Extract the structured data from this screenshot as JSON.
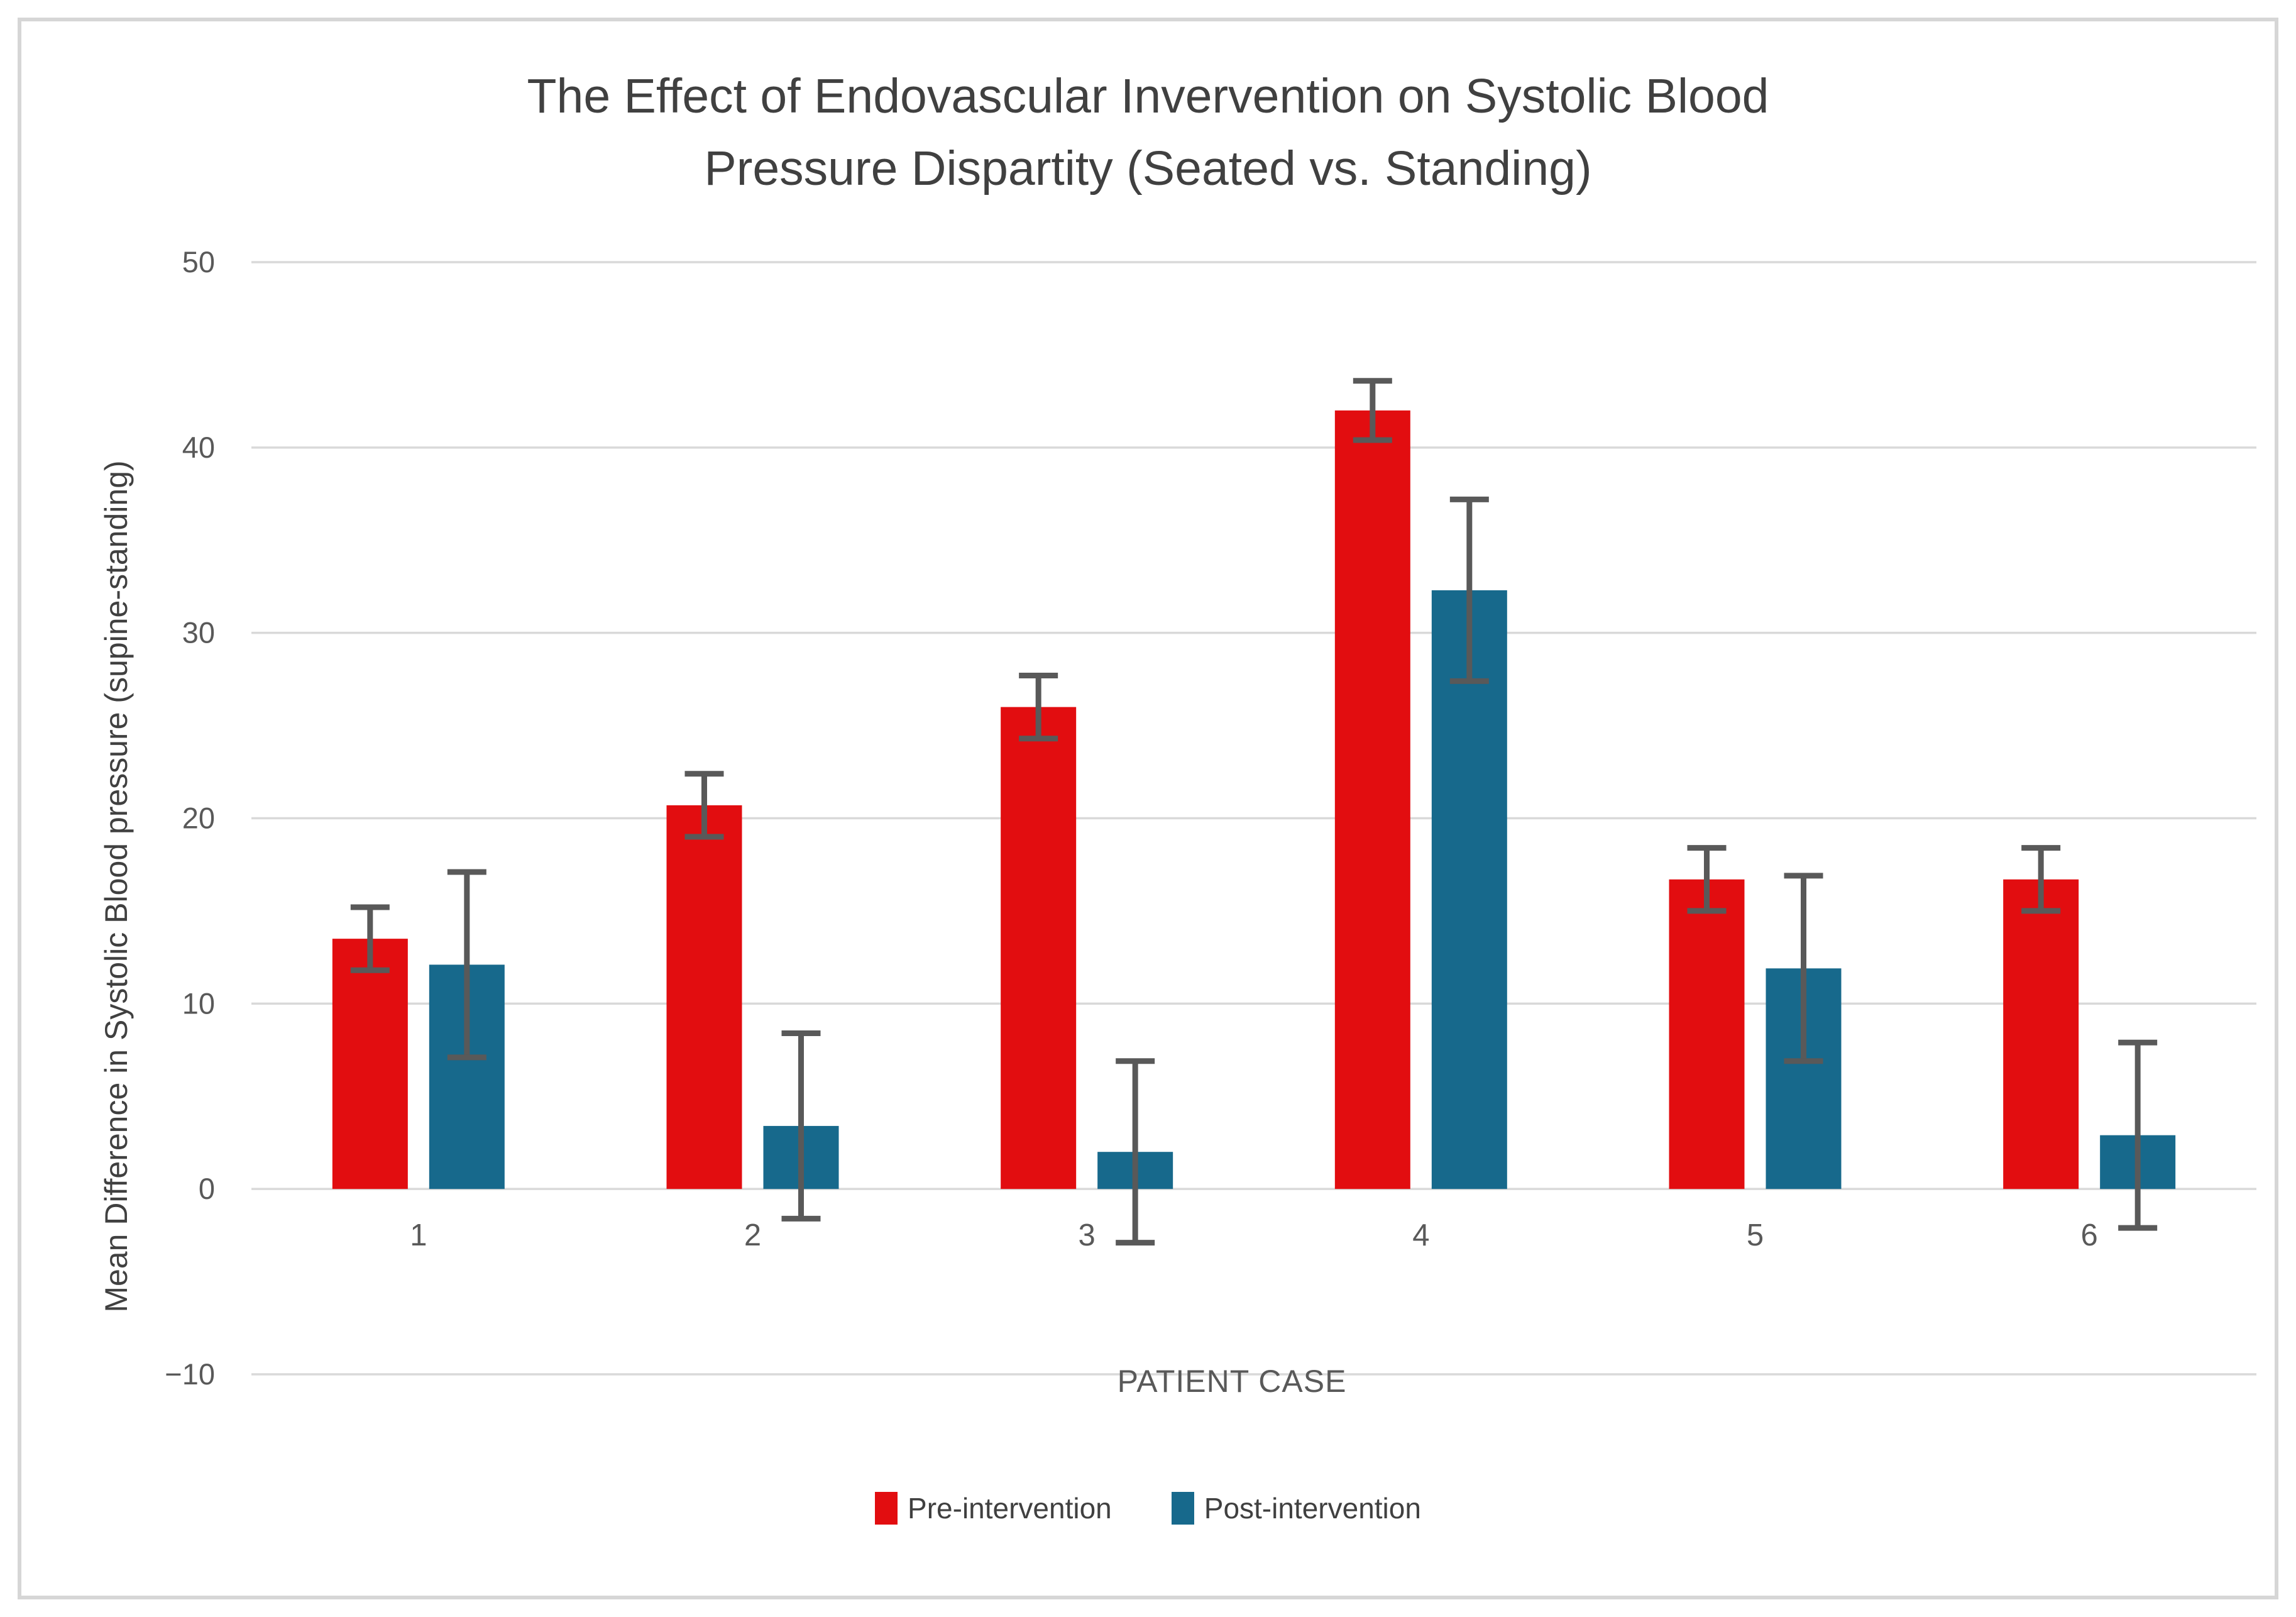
{
  "figure": {
    "title_line1": "The Effect of Endovascular Invervention on Systolic Blood",
    "title_line2": "Pressure Dispartity (Seated vs. Standing)"
  },
  "chart_data": {
    "type": "bar",
    "title": "The Effect of Endovascular Invervention on Systolic Blood Pressure Dispartity (Seated vs. Standing)",
    "xlabel": "PATIENT CASE",
    "ylabel": "Mean Difference in Systolic Blood pressure (supine-standing)",
    "categories": [
      "1",
      "2",
      "3",
      "4",
      "5",
      "6"
    ],
    "series": [
      {
        "name": "Pre-intervention",
        "color": "#e20d10",
        "values": [
          13.5,
          20.7,
          26.0,
          42.0,
          16.7,
          16.7
        ],
        "errors": [
          1.7,
          1.7,
          1.7,
          1.6,
          1.7,
          1.7
        ]
      },
      {
        "name": "Post-intervention",
        "color": "#17698c",
        "values": [
          12.1,
          3.4,
          2.0,
          32.3,
          11.9,
          2.9
        ],
        "errors": [
          5.0,
          5.0,
          4.9,
          4.9,
          5.0,
          5.0
        ]
      }
    ],
    "ylim": [
      -10,
      50
    ],
    "yticks": [
      50,
      40,
      30,
      20,
      10,
      0,
      -10
    ],
    "grid": true,
    "legend_position": "bottom",
    "error_bar_color": "#595959",
    "gridline_color": "#d9d9d9",
    "tick_label_color": "#595959",
    "title_color": "#404040",
    "frame_border_color": "#d6d6d6"
  }
}
